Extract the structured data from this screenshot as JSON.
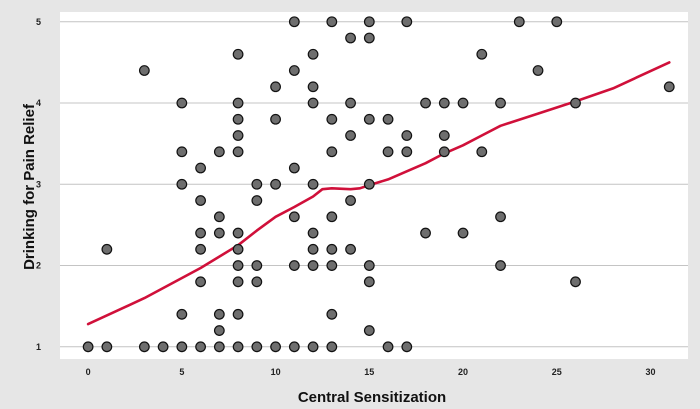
{
  "chart_data": {
    "type": "scatter",
    "title": "",
    "xlabel": "Central Sensitization",
    "ylabel": "Drinking for Pain Relief",
    "xlim": [
      -1.5,
      32
    ],
    "ylim": [
      0.85,
      5.12
    ],
    "xticks": [
      0,
      5,
      10,
      15,
      20,
      25,
      30
    ],
    "yticks": [
      1,
      2,
      3,
      4,
      5
    ],
    "grid": "horizontal",
    "colors": {
      "points": "#6e6e6e",
      "fit_line": "#d0103a",
      "plot_background": "#ffffff",
      "outer_background": "#e6e6e6"
    },
    "points": [
      [
        0,
        1
      ],
      [
        1,
        1
      ],
      [
        3,
        1
      ],
      [
        4,
        1
      ],
      [
        5,
        1
      ],
      [
        6,
        1
      ],
      [
        7,
        1
      ],
      [
        8,
        1
      ],
      [
        9,
        1
      ],
      [
        10,
        1
      ],
      [
        11,
        1
      ],
      [
        12,
        1
      ],
      [
        13,
        1
      ],
      [
        16,
        1
      ],
      [
        17,
        1
      ],
      [
        7,
        1.2
      ],
      [
        15,
        1.2
      ],
      [
        5,
        1.4
      ],
      [
        7,
        1.4
      ],
      [
        8,
        1.4
      ],
      [
        13,
        1.4
      ],
      [
        6,
        1.8
      ],
      [
        8,
        1.8
      ],
      [
        9,
        1.8
      ],
      [
        15,
        1.8
      ],
      [
        26,
        1.8
      ],
      [
        8,
        2
      ],
      [
        9,
        2
      ],
      [
        11,
        2
      ],
      [
        12,
        2
      ],
      [
        13,
        2
      ],
      [
        15,
        2
      ],
      [
        22,
        2
      ],
      [
        1,
        2.2
      ],
      [
        6,
        2.2
      ],
      [
        8,
        2.2
      ],
      [
        12,
        2.2
      ],
      [
        13,
        2.2
      ],
      [
        14,
        2.2
      ],
      [
        6,
        2.4
      ],
      [
        7,
        2.4
      ],
      [
        8,
        2.4
      ],
      [
        12,
        2.4
      ],
      [
        18,
        2.4
      ],
      [
        20,
        2.4
      ],
      [
        7,
        2.6
      ],
      [
        11,
        2.6
      ],
      [
        13,
        2.6
      ],
      [
        22,
        2.6
      ],
      [
        6,
        2.8
      ],
      [
        9,
        2.8
      ],
      [
        14,
        2.8
      ],
      [
        5,
        3
      ],
      [
        9,
        3
      ],
      [
        10,
        3
      ],
      [
        12,
        3
      ],
      [
        15,
        3
      ],
      [
        6,
        3.2
      ],
      [
        11,
        3.2
      ],
      [
        5,
        3.4
      ],
      [
        7,
        3.4
      ],
      [
        8,
        3.4
      ],
      [
        13,
        3.4
      ],
      [
        16,
        3.4
      ],
      [
        17,
        3.4
      ],
      [
        19,
        3.4
      ],
      [
        21,
        3.4
      ],
      [
        8,
        3.6
      ],
      [
        14,
        3.6
      ],
      [
        17,
        3.6
      ],
      [
        19,
        3.6
      ],
      [
        8,
        3.8
      ],
      [
        10,
        3.8
      ],
      [
        13,
        3.8
      ],
      [
        15,
        3.8
      ],
      [
        16,
        3.8
      ],
      [
        5,
        4
      ],
      [
        8,
        4
      ],
      [
        12,
        4
      ],
      [
        14,
        4
      ],
      [
        18,
        4
      ],
      [
        19,
        4
      ],
      [
        20,
        4
      ],
      [
        22,
        4
      ],
      [
        26,
        4
      ],
      [
        10,
        4.2
      ],
      [
        12,
        4.2
      ],
      [
        31,
        4.2
      ],
      [
        3,
        4.4
      ],
      [
        11,
        4.4
      ],
      [
        24,
        4.4
      ],
      [
        8,
        4.6
      ],
      [
        12,
        4.6
      ],
      [
        21,
        4.6
      ],
      [
        14,
        4.8
      ],
      [
        15,
        4.8
      ],
      [
        11,
        5
      ],
      [
        13,
        5
      ],
      [
        15,
        5
      ],
      [
        17,
        5
      ],
      [
        23,
        5
      ],
      [
        25,
        5
      ]
    ],
    "fit_line": {
      "label": "",
      "points": [
        [
          0,
          1.28
        ],
        [
          3,
          1.6
        ],
        [
          6,
          1.97
        ],
        [
          8,
          2.25
        ],
        [
          9,
          2.43
        ],
        [
          10,
          2.6
        ],
        [
          11,
          2.72
        ],
        [
          12,
          2.85
        ],
        [
          12.5,
          2.94
        ],
        [
          13,
          2.95
        ],
        [
          14,
          2.94
        ],
        [
          14.5,
          2.95
        ],
        [
          15,
          2.99
        ],
        [
          16,
          3.06
        ],
        [
          17,
          3.16
        ],
        [
          18,
          3.26
        ],
        [
          19,
          3.38
        ],
        [
          20,
          3.48
        ],
        [
          21,
          3.6
        ],
        [
          22,
          3.72
        ],
        [
          24,
          3.87
        ],
        [
          26,
          4.02
        ],
        [
          28,
          4.18
        ],
        [
          31,
          4.5
        ]
      ]
    }
  }
}
